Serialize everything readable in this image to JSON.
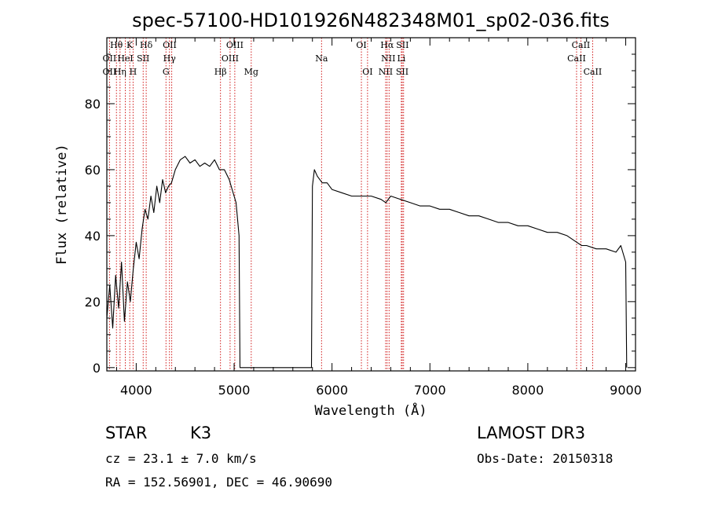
{
  "chart_data": {
    "type": "line",
    "title": "spec-57100-HD101926N482348M01_sp02-036.fits",
    "xlabel": "Wavelength (Å)",
    "ylabel": "Flux (relative)",
    "xlim": [
      3700,
      9100
    ],
    "ylim": [
      -1,
      100
    ],
    "x_ticks": [
      4000,
      5000,
      6000,
      7000,
      8000,
      9000
    ],
    "y_ticks": [
      0,
      20,
      40,
      60,
      80
    ],
    "series": [
      {
        "name": "flux",
        "x": [
          3700,
          3730,
          3760,
          3790,
          3820,
          3850,
          3880,
          3910,
          3940,
          3970,
          4000,
          4030,
          4060,
          4090,
          4120,
          4150,
          4180,
          4210,
          4240,
          4270,
          4300,
          4330,
          4360,
          4400,
          4450,
          4500,
          4550,
          4600,
          4650,
          4700,
          4750,
          4800,
          4850,
          4900,
          4950,
          4980,
          5000,
          5020,
          5050,
          5060,
          5100,
          5300,
          5500,
          5700,
          5790,
          5800,
          5820,
          5850,
          5900,
          5950,
          6000,
          6100,
          6200,
          6300,
          6400,
          6500,
          6550,
          6600,
          6700,
          6800,
          6900,
          7000,
          7100,
          7200,
          7300,
          7400,
          7500,
          7600,
          7700,
          7800,
          7900,
          8000,
          8100,
          8200,
          8300,
          8400,
          8500,
          8550,
          8600,
          8700,
          8800,
          8900,
          8950,
          9000,
          9010
        ],
        "y": [
          15,
          25,
          12,
          28,
          18,
          32,
          14,
          26,
          20,
          30,
          38,
          33,
          42,
          48,
          45,
          52,
          47,
          55,
          50,
          57,
          53,
          55,
          56,
          60,
          63,
          64,
          62,
          63,
          61,
          62,
          61,
          63,
          60,
          60,
          57,
          54,
          52,
          50,
          40,
          0,
          0,
          0,
          0,
          0,
          0,
          55,
          60,
          58,
          56,
          56,
          54,
          53,
          52,
          52,
          52,
          51,
          50,
          52,
          51,
          50,
          49,
          49,
          48,
          48,
          47,
          46,
          46,
          45,
          44,
          44,
          43,
          43,
          42,
          41,
          41,
          40,
          38,
          37,
          37,
          36,
          36,
          35,
          37,
          32,
          0
        ]
      }
    ]
  },
  "line_labels": [
    {
      "text": "Hθ",
      "row": 0,
      "x": 3798
    },
    {
      "text": "K",
      "row": 0,
      "x": 3934
    },
    {
      "text": "Hδ",
      "row": 0,
      "x": 4102
    },
    {
      "text": "OII",
      "row": 0,
      "x": 4342
    },
    {
      "text": "OIII",
      "row": 0,
      "x": 5007
    },
    {
      "text": "OI",
      "row": 0,
      "x": 6300
    },
    {
      "text": "Hα",
      "row": 0,
      "x": 6563
    },
    {
      "text": "SII",
      "row": 0,
      "x": 6720
    },
    {
      "text": "CaII",
      "row": 0,
      "x": 8542
    },
    {
      "text": "OII",
      "row": 1,
      "x": 3727
    },
    {
      "text": "HeI",
      "row": 1,
      "x": 3889
    },
    {
      "text": "SII",
      "row": 1,
      "x": 4071
    },
    {
      "text": "Hγ",
      "row": 1,
      "x": 4340
    },
    {
      "text": "OIII",
      "row": 1,
      "x": 4959
    },
    {
      "text": "Na",
      "row": 1,
      "x": 5893
    },
    {
      "text": "NII",
      "row": 1,
      "x": 6575
    },
    {
      "text": "Li",
      "row": 1,
      "x": 6708
    },
    {
      "text": "CaII",
      "row": 1,
      "x": 8498
    },
    {
      "text": "OII",
      "row": 2,
      "x": 3727
    },
    {
      "text": "Hη",
      "row": 2,
      "x": 3835
    },
    {
      "text": "H",
      "row": 2,
      "x": 3968
    },
    {
      "text": "G",
      "row": 2,
      "x": 4304
    },
    {
      "text": "Hβ",
      "row": 2,
      "x": 4861
    },
    {
      "text": "Mg",
      "row": 2,
      "x": 5175
    },
    {
      "text": "OI",
      "row": 2,
      "x": 6363
    },
    {
      "text": "NII",
      "row": 2,
      "x": 6548
    },
    {
      "text": "SII",
      "row": 2,
      "x": 6717
    },
    {
      "text": "CaII",
      "row": 2,
      "x": 8662
    }
  ],
  "line_positions": [
    3727,
    3798,
    3835,
    3889,
    3934,
    3968,
    4071,
    4102,
    4304,
    4340,
    4363,
    4861,
    4959,
    5007,
    5175,
    5893,
    6300,
    6363,
    6548,
    6563,
    6583,
    6708,
    6717,
    6731,
    8498,
    8542,
    8662
  ],
  "info": {
    "object_type": "STAR",
    "subclass": "K3",
    "survey": "LAMOST DR3",
    "cz": "cz = 23.1 ± 7.0 km/s",
    "obs_date": "Obs-Date: 20150318",
    "coords": "RA = 152.56901, DEC =  46.90690"
  },
  "colors": {
    "spectrum": "#000000",
    "marker_lines": "#cc0000"
  }
}
